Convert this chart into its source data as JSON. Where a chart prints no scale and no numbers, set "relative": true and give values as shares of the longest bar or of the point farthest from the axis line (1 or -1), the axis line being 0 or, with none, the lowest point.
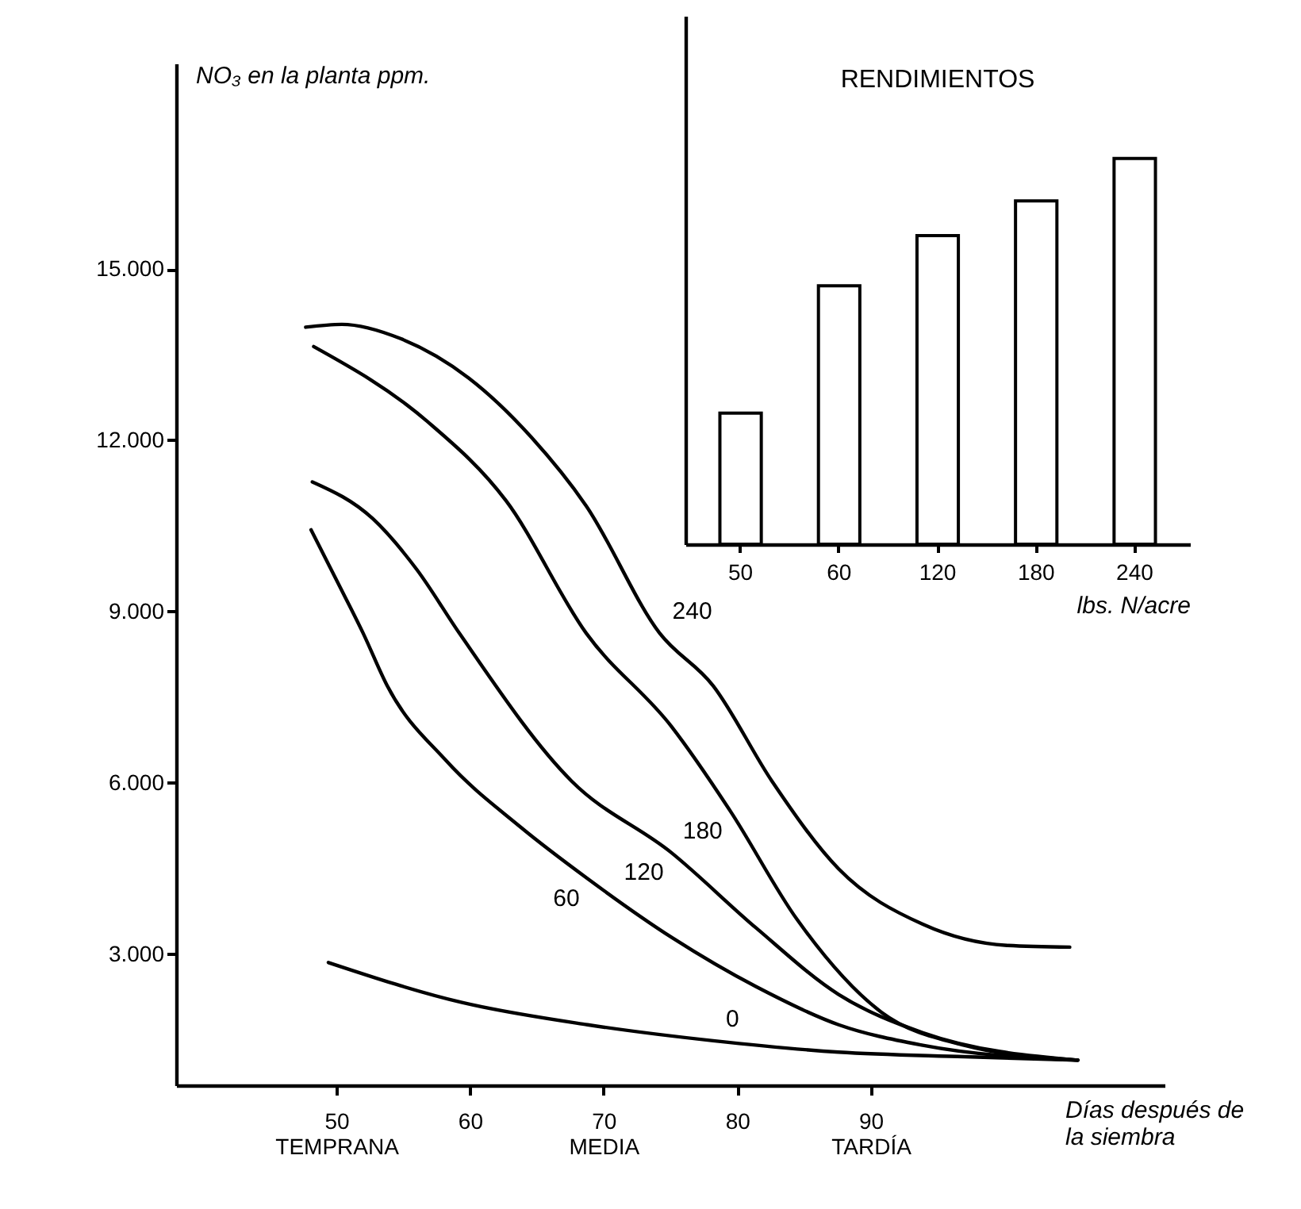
{
  "chart_data": [
    {
      "type": "line",
      "ylabel": "NO₃ en la planta ppm.",
      "xlabel": "Días después de la siembra",
      "xlim": [
        38,
        112
      ],
      "xticks": [
        {
          "value": 50,
          "label": "50\nTEMPRANA"
        },
        60,
        {
          "value": 70,
          "label": "70\nMEDIA"
        },
        80,
        {
          "value": 90,
          "label": "90\nTARDÍA"
        }
      ],
      "ylim": [
        700,
        18600
      ],
      "yticks": [
        {
          "value": 3000,
          "label": "3.000"
        },
        {
          "value": 6000,
          "label": "6.000"
        },
        {
          "value": 9000,
          "label": "9.000"
        },
        {
          "value": 12000,
          "label": "12.000"
        },
        {
          "value": 15000,
          "label": "15.000"
        }
      ],
      "grid": false,
      "legend": false,
      "line_style": "solid",
      "series": [
        {
          "name": "0",
          "color": "#000000",
          "x": [
            49.4,
            59.4,
            68.8,
            78.2,
            87.6,
            97,
            105.5
          ],
          "values": [
            2850,
            2150,
            1760,
            1480,
            1280,
            1200,
            1140
          ]
        },
        {
          "name": "60",
          "color": "#000000",
          "x": [
            48.1,
            50.4,
            52,
            53.8,
            58.2,
            63.8,
            68.8,
            75.1,
            81.4,
            87.6,
            93.9,
            105.5
          ],
          "values": [
            10430,
            9370,
            8620,
            7700,
            6390,
            5220,
            4320,
            3290,
            2430,
            1760,
            1400,
            1140
          ]
        },
        {
          "name": "120",
          "color": "#000000",
          "x": [
            48.2,
            52.7,
            56,
            59.2,
            67.6,
            75.1,
            81.4,
            87.6,
            93.9,
            105.5
          ],
          "values": [
            11270,
            10630,
            9740,
            8620,
            6030,
            4770,
            3460,
            2290,
            1620,
            1140
          ]
        },
        {
          "name": "180",
          "color": "#000000",
          "x": [
            48.3,
            56.8,
            62.7,
            68.7,
            75.1,
            79.5,
            84.5,
            90.8,
            97,
            105.5
          ],
          "values": [
            13640,
            12330,
            10940,
            8620,
            6980,
            5500,
            3600,
            1980,
            1400,
            1140
          ]
        },
        {
          "name": "240",
          "color": "#000000",
          "x": [
            47.7,
            50.4,
            54.8,
            59.9,
            64.6,
            68.7,
            74.2,
            78.2,
            82.6,
            87.6,
            93.9,
            100.2,
            104.9
          ],
          "values": [
            13980,
            14030,
            13780,
            13090,
            12050,
            10850,
            8620,
            7700,
            6030,
            4490,
            3520,
            3150,
            3120
          ]
        }
      ]
    },
    {
      "type": "bar",
      "title": "RENDIMIENTOS",
      "xlabel": "lbs. N/acre",
      "relative": true,
      "categories": [
        "50",
        "60",
        "120",
        "180",
        "240"
      ],
      "values": [
        0.34,
        0.67,
        0.8,
        0.89,
        1
      ],
      "color": "#ffffff"
    }
  ]
}
